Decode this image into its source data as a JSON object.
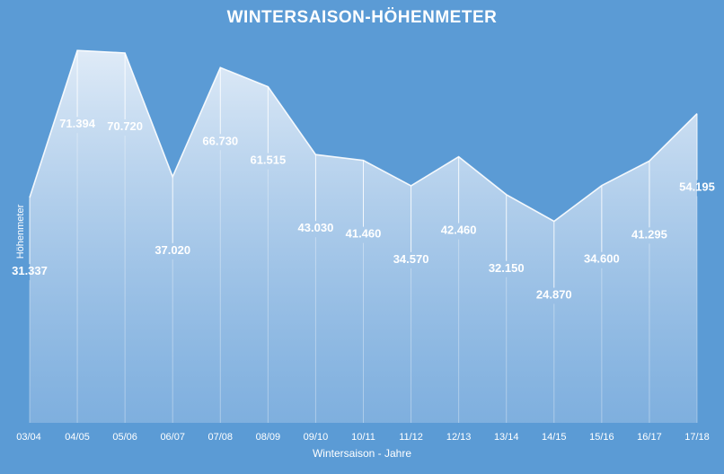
{
  "chart_data": {
    "type": "area",
    "title": "WINTERSAISON-HÖHENMETER",
    "xlabel": "Wintersaison - Jahre",
    "ylabel": "Höhenmeter",
    "categories": [
      "03/04",
      "04/05",
      "05/06",
      "06/07",
      "07/08",
      "08/09",
      "09/10",
      "10/11",
      "11/12",
      "12/13",
      "13/14",
      "14/15",
      "15/16",
      "16/17",
      "17/18"
    ],
    "values": [
      31337,
      71394,
      70720,
      37020,
      66730,
      61515,
      43030,
      41460,
      34570,
      42460,
      32150,
      24870,
      34600,
      41295,
      54195
    ],
    "value_labels": [
      "31.337",
      "71.394",
      "70.720",
      "37.020",
      "66.730",
      "61.515",
      "43.030",
      "41.460",
      "34.570",
      "42.460",
      "32.150",
      "24.870",
      "34.600",
      "41.295",
      "54.195"
    ],
    "ylim": [
      -30000,
      80000
    ],
    "grid": false,
    "legend": "none",
    "colors": {
      "background": "#5b9bd5",
      "fill_top": "#dde9f6",
      "line": "#ffffff",
      "text": "#ffffff"
    }
  }
}
